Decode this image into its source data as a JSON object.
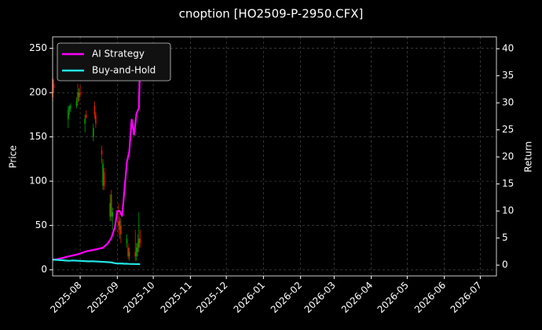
{
  "chart_data": {
    "type": "candlestick",
    "title": "cnoption [HO2509-P-2950.CFX]",
    "ylabel": "Price",
    "y2label": "Return",
    "xlim": [
      8,
      378.5
    ],
    "xticks": [
      {
        "value": 31,
        "label": "2025-08"
      },
      {
        "value": 62,
        "label": "2025-09"
      },
      {
        "value": 92,
        "label": "2025-10"
      },
      {
        "value": 123,
        "label": "2025-11"
      },
      {
        "value": 153,
        "label": "2025-12"
      },
      {
        "value": 184,
        "label": "2026-01"
      },
      {
        "value": 215,
        "label": "2026-02"
      },
      {
        "value": 243,
        "label": "2026-03"
      },
      {
        "value": 274,
        "label": "2026-04"
      },
      {
        "value": 304,
        "label": "2026-05"
      },
      {
        "value": 335,
        "label": "2026-06"
      },
      {
        "value": 365,
        "label": "2026-07"
      }
    ],
    "ylim": [
      -7,
      263
    ],
    "yticks": [
      0,
      50,
      100,
      150,
      200,
      250
    ],
    "y2lim": [
      -2,
      42.2
    ],
    "y2ticks": [
      0,
      5,
      10,
      15,
      20,
      25,
      30,
      35,
      40
    ],
    "grid": true,
    "legend": "upper left",
    "up_color": "#00a000",
    "down_color": "#e02000",
    "candles": {
      "x": [
        8,
        9,
        21,
        22,
        23,
        28,
        29,
        30,
        31,
        35,
        36,
        42,
        43,
        44,
        49,
        50,
        51,
        56,
        57,
        58,
        63,
        64,
        65,
        70,
        71,
        72,
        77,
        78,
        79,
        80,
        81
      ],
      "open": [
        215,
        210,
        170,
        180,
        183,
        185,
        200,
        195,
        200,
        165,
        175,
        150,
        185,
        175,
        135,
        95,
        110,
        60,
        85,
        60,
        55,
        45,
        50,
        30,
        25,
        15,
        20,
        15,
        30,
        25,
        35
      ],
      "high": [
        218,
        215,
        185,
        186,
        188,
        195,
        210,
        205,
        208,
        175,
        180,
        165,
        190,
        178,
        140,
        125,
        115,
        85,
        90,
        70,
        75,
        60,
        58,
        40,
        30,
        25,
        45,
        30,
        40,
        65,
        45
      ],
      "low": [
        190,
        200,
        160,
        175,
        178,
        182,
        185,
        190,
        195,
        155,
        170,
        145,
        170,
        160,
        120,
        90,
        90,
        55,
        55,
        45,
        40,
        35,
        30,
        25,
        12,
        10,
        10,
        10,
        15,
        20,
        25
      ],
      "close": [
        195,
        205,
        180,
        184,
        185,
        190,
        190,
        200,
        198,
        170,
        172,
        160,
        175,
        165,
        130,
        120,
        95,
        75,
        60,
        65,
        50,
        55,
        40,
        35,
        15,
        20,
        15,
        25,
        20,
        35,
        30
      ]
    },
    "series": [
      {
        "name": "AI Strategy",
        "color": "#ff00ff",
        "axis": "y2",
        "x": [
          8,
          12,
          16,
          21,
          25,
          29,
          33,
          37,
          42,
          46,
          50,
          54,
          57,
          60,
          62,
          64,
          66,
          68,
          70,
          72,
          74,
          76,
          78,
          80,
          81
        ],
        "values": [
          1,
          1.1,
          1.3,
          1.6,
          1.8,
          2,
          2.3,
          2.6,
          2.8,
          3,
          3.2,
          4,
          5,
          7,
          10,
          10,
          9,
          14,
          19,
          21,
          27,
          24,
          28,
          29,
          38
        ]
      },
      {
        "name": "Buy-and-Hold",
        "color": "#22e5e5",
        "axis": "y2",
        "x": [
          8,
          12,
          16,
          21,
          25,
          29,
          33,
          37,
          42,
          46,
          50,
          54,
          57,
          60,
          62,
          64,
          66,
          68,
          70,
          72,
          74,
          76,
          78,
          80,
          81
        ],
        "values": [
          1,
          0.95,
          0.9,
          0.8,
          0.85,
          0.8,
          0.75,
          0.7,
          0.7,
          0.65,
          0.6,
          0.55,
          0.5,
          0.35,
          0.3,
          0.3,
          0.28,
          0.25,
          0.25,
          0.22,
          0.2,
          0.2,
          0.18,
          0.18,
          0.18
        ]
      }
    ]
  }
}
